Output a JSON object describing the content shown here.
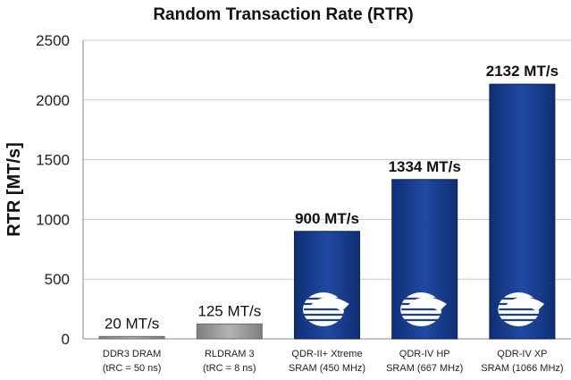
{
  "chart_data": {
    "type": "bar",
    "title": "Random Transaction Rate (RTR)",
    "ylabel": "RTR [MT/s]",
    "xlabel": "",
    "ylim": [
      0,
      2500
    ],
    "yticks": [
      0,
      500,
      1000,
      1500,
      2000,
      2500
    ],
    "grid": true,
    "categories": [
      [
        "DDR3 DRAM",
        "(tRC = 50 ns)"
      ],
      [
        "RLDRAM 3",
        "(tRC = 8 ns)"
      ],
      [
        "QDR-II+ Xtreme",
        "SRAM (450 MHz)"
      ],
      [
        "QDR-IV HP",
        "SRAM (667 MHz)"
      ],
      [
        "QDR-IV XP",
        "SRAM (1066 MHz)"
      ]
    ],
    "values": [
      20,
      125,
      900,
      1334,
      2132
    ],
    "data_labels": [
      "20 MT/s",
      "125 MT/s",
      "900 MT/s",
      "1334 MT/s",
      "2132 MT/s"
    ],
    "bar_colors": [
      "#9a9a9a",
      "#8c8c8c",
      "#173d8c",
      "#173d8c",
      "#173d8c"
    ],
    "bar_logo": [
      false,
      false,
      true,
      true,
      true
    ],
    "label_bold": [
      false,
      false,
      true,
      true,
      true
    ]
  }
}
